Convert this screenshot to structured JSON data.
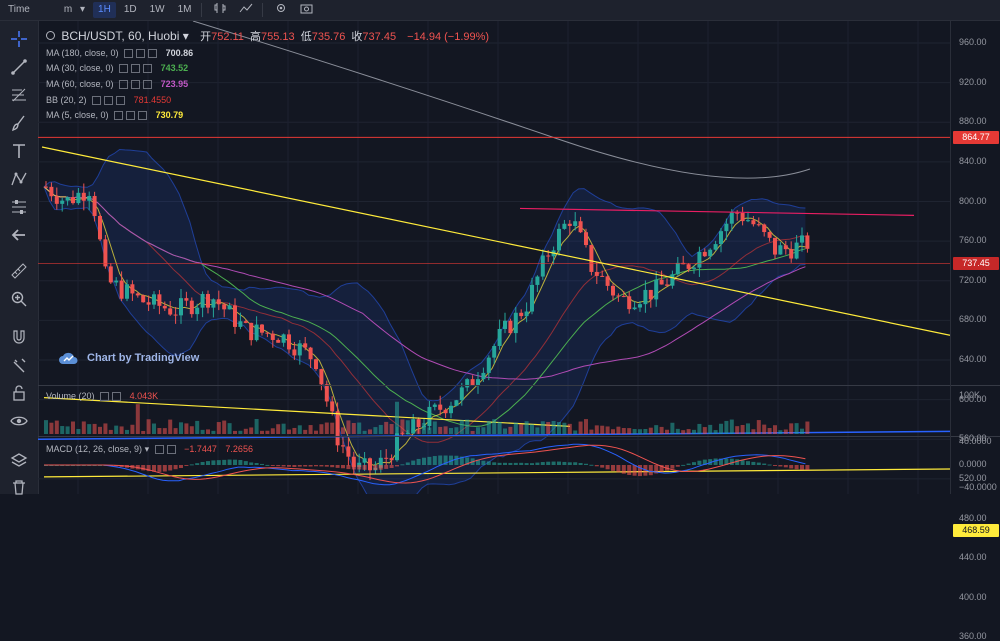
{
  "toolbar": {
    "time_label": "Time",
    "interval_dropdown": "m",
    "intervals": [
      "1H",
      "1D",
      "1W",
      "1M"
    ],
    "active_interval": "1H"
  },
  "symbol": {
    "title": "BCH/USDT, 60, Huobi",
    "open_label": "开",
    "open": "752.11",
    "high_label": "高",
    "high": "755.13",
    "low_label": "低",
    "low": "735.76",
    "close_label": "收",
    "close": "737.45",
    "change": "−14.94 (−1.99%)"
  },
  "indicators": {
    "ma180": {
      "label": "MA (180, close, 0)",
      "value": "700.86",
      "color": "#9598a1"
    },
    "ma30": {
      "label": "MA (30, close, 0)",
      "value": "743.52",
      "color": "#4caf50"
    },
    "ma60": {
      "label": "MA (60, close, 0)",
      "value": "723.95",
      "color": "#b04bb4"
    },
    "bb": {
      "label": "BB (20, 2)",
      "value": "781.4550",
      "color": "#e53935"
    },
    "ma5": {
      "label": "MA (5, close, 0)",
      "value": "730.79",
      "color": "#ffeb3b"
    }
  },
  "price_axis": {
    "labels": [
      "960.00",
      "920.00",
      "880.00",
      "840.00",
      "800.00",
      "760.00",
      "720.00",
      "680.00",
      "640.00",
      "600.00",
      "560.00",
      "520.00",
      "480.00",
      "440.00",
      "400.00",
      "360.00"
    ],
    "tags": [
      {
        "value": "864.77",
        "color": "#e53935",
        "text_color": "#ffffff"
      },
      {
        "value": "737.45",
        "color": "#c62828",
        "text_color": "#ffffff"
      },
      {
        "value": "468.59",
        "color": "#ffeb3b",
        "text_color": "#131722"
      }
    ]
  },
  "volume": {
    "label": "Volume (20)",
    "value": "4.043K",
    "axis_label": "100K"
  },
  "macd": {
    "label": "MACD (12, 26, close, 9)",
    "value_macd": "−1.7447",
    "value_hist": "7.2656",
    "axis_labels": [
      "40.0000",
      "0.0000",
      "−40.0000"
    ]
  },
  "watermark": {
    "text": "Chart by TradingView"
  },
  "colors": {
    "up": "#26a69a",
    "down": "#ef5350",
    "trendline": "#ffeb3b",
    "resistance": "#e91e63",
    "support_blue": "#2962ff",
    "background": "#131722"
  }
}
